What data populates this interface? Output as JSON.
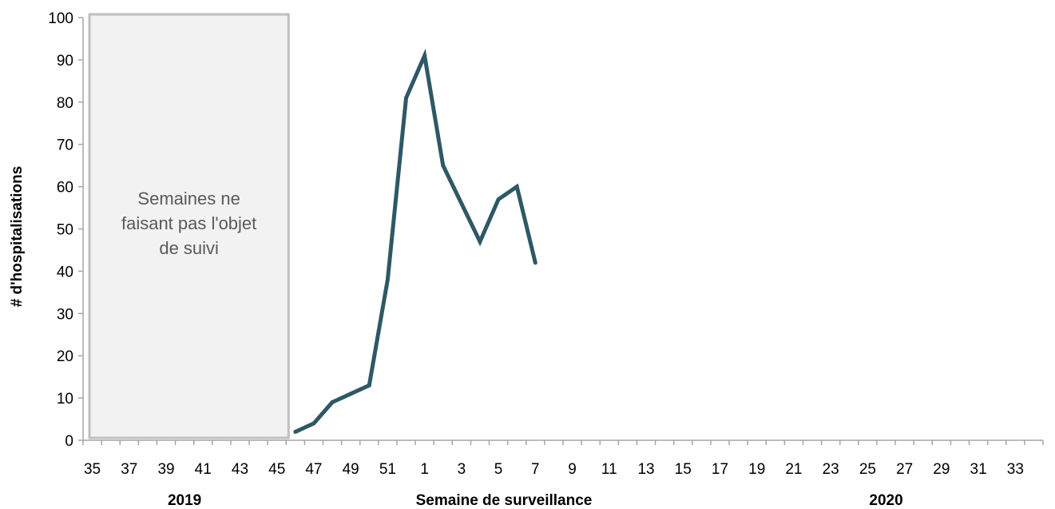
{
  "chart_data": {
    "type": "line",
    "x": [
      "46",
      "47",
      "48",
      "49",
      "50",
      "51",
      "52",
      "1",
      "2",
      "3",
      "4",
      "5",
      "6",
      "7"
    ],
    "series": [
      {
        "values": [
          2,
          4,
          9,
          11,
          13,
          38,
          81,
          91,
          65,
          56,
          47,
          57,
          60,
          42
        ],
        "color": "#2e5866"
      }
    ],
    "xlabel": "Semaine de surveillance",
    "ylabel": "# d'hospitalisations",
    "ylim": [
      0,
      100
    ],
    "yticks": [
      0,
      10,
      20,
      30,
      40,
      50,
      60,
      70,
      80,
      90,
      100
    ],
    "week_categories": [
      "35",
      "36",
      "37",
      "38",
      "39",
      "40",
      "41",
      "42",
      "43",
      "44",
      "45",
      "46",
      "47",
      "48",
      "49",
      "50",
      "51",
      "52",
      "1",
      "2",
      "3",
      "4",
      "5",
      "6",
      "7",
      "8",
      "9",
      "10",
      "11",
      "12",
      "13",
      "14",
      "15",
      "16",
      "17",
      "18",
      "19",
      "20",
      "21",
      "22",
      "23",
      "24",
      "25",
      "26",
      "27",
      "28",
      "29",
      "30",
      "31",
      "32",
      "33",
      "34"
    ],
    "xtick_labels": [
      "35",
      "37",
      "39",
      "41",
      "43",
      "45",
      "47",
      "49",
      "51",
      "1",
      "3",
      "5",
      "7",
      "9",
      "11",
      "13",
      "15",
      "17",
      "19",
      "21",
      "23",
      "25",
      "27",
      "29",
      "31",
      "33"
    ],
    "year_labels": [
      {
        "label": "2019",
        "at_week": "40"
      },
      {
        "label": "2020",
        "at_week": "26"
      }
    ],
    "shaded_region": {
      "from_week": "35",
      "to_week": "45",
      "label_lines": [
        "Semaines ne",
        "faisant pas l'objet",
        "de suivi"
      ],
      "fill": "#f2f2f2",
      "border": "#bfbfbf"
    },
    "grid": false,
    "legend": "none"
  }
}
